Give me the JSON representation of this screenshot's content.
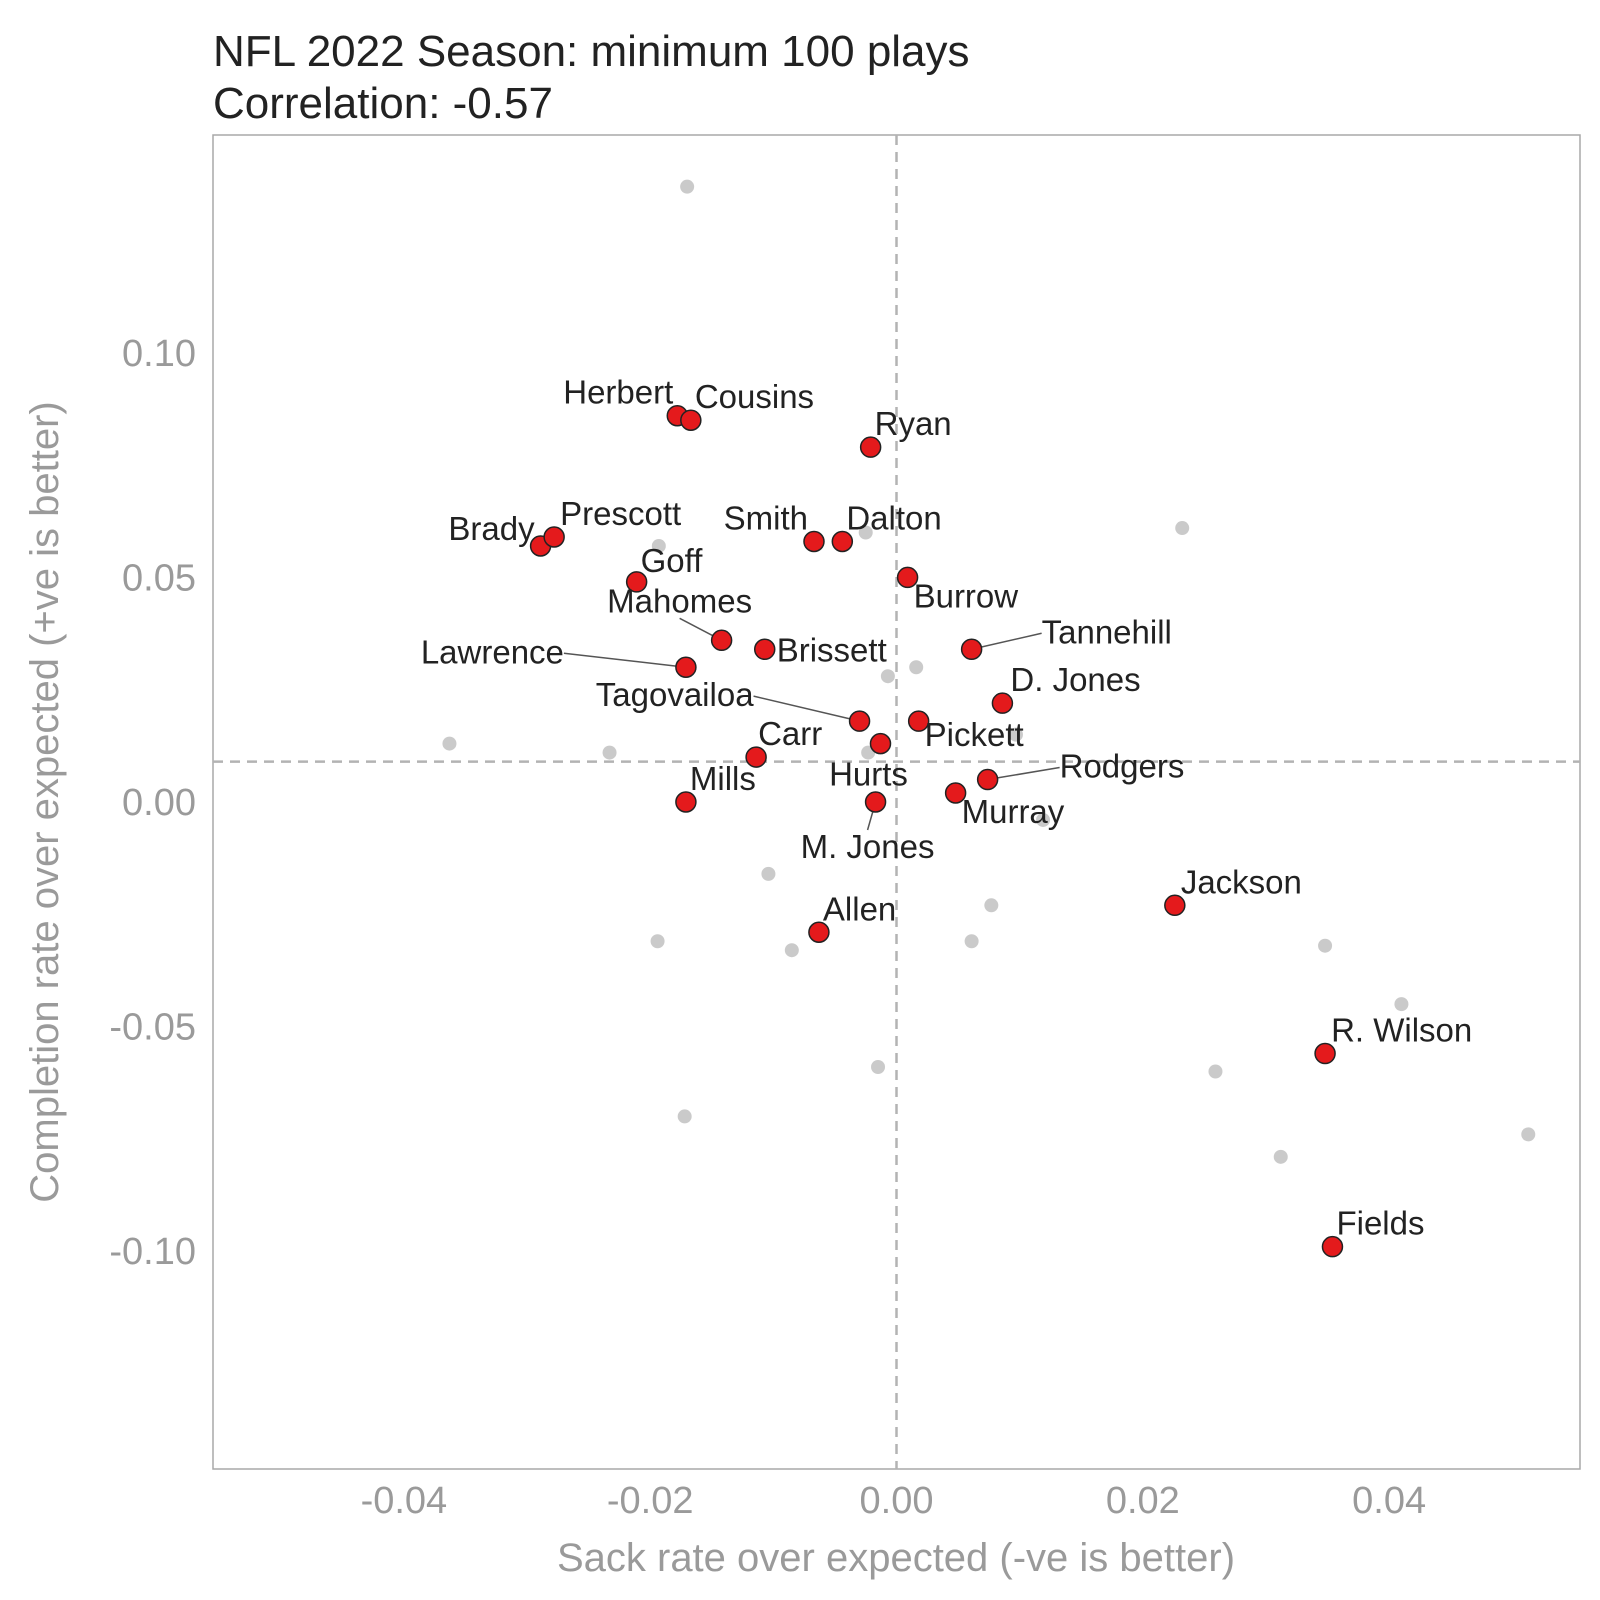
{
  "chart_data": {
    "type": "scatter",
    "title": "NFL 2022 Season: minimum 100 plays",
    "subtitle": "Correlation: -0.57",
    "xlabel": "Sack rate over expected (-ve is better)",
    "ylabel": "Completion rate over expected (+ve is better)",
    "xlim": [
      -0.0555,
      0.0555
    ],
    "ylim": [
      -0.1485,
      0.1485
    ],
    "x_ticks": [
      -0.04,
      -0.02,
      0.0,
      0.02,
      0.04
    ],
    "x_tick_labels": [
      "-0.04",
      "-0.02",
      "0.00",
      "0.02",
      "0.04"
    ],
    "y_ticks": [
      0.1,
      0.05,
      0.0,
      -0.05,
      -0.1
    ],
    "y_tick_labels": [
      "0.10",
      "0.05",
      "0.00",
      "-0.05",
      "-0.10"
    ],
    "grid": false,
    "reference_lines": {
      "x": 0.0,
      "y": 0.009,
      "style": "dashed",
      "color": "#b3b3b3"
    },
    "colors": {
      "highlight": "#e41a1c",
      "highlight_stroke": "#222222",
      "background_points": "#c4c4c4"
    },
    "highlighted": [
      {
        "name": "Herbert",
        "x": -0.0178,
        "y": 0.086
      },
      {
        "name": "Cousins",
        "x": -0.0167,
        "y": 0.085
      },
      {
        "name": "Ryan",
        "x": -0.0021,
        "y": 0.079
      },
      {
        "name": "Brady",
        "x": -0.0289,
        "y": 0.057
      },
      {
        "name": "Prescott",
        "x": -0.0278,
        "y": 0.059
      },
      {
        "name": "Smith",
        "x": -0.0067,
        "y": 0.058
      },
      {
        "name": "Dalton",
        "x": -0.0044,
        "y": 0.058
      },
      {
        "name": "Goff",
        "x": -0.0211,
        "y": 0.049
      },
      {
        "name": "Burrow",
        "x": 0.0009,
        "y": 0.05
      },
      {
        "name": "Mahomes",
        "x": -0.0142,
        "y": 0.036
      },
      {
        "name": "Brissett",
        "x": -0.0107,
        "y": 0.034
      },
      {
        "name": "Tannehill",
        "x": 0.0061,
        "y": 0.034
      },
      {
        "name": "Lawrence",
        "x": -0.0171,
        "y": 0.03
      },
      {
        "name": "D. Jones",
        "x": 0.0086,
        "y": 0.022
      },
      {
        "name": "Tagovailoa",
        "x": -0.003,
        "y": 0.018
      },
      {
        "name": "Pickett",
        "x": 0.0018,
        "y": 0.018
      },
      {
        "name": "Carr",
        "x": -0.0114,
        "y": 0.01
      },
      {
        "name": "Hurts",
        "x": -0.0013,
        "y": 0.013
      },
      {
        "name": "Rodgers",
        "x": 0.0074,
        "y": 0.005
      },
      {
        "name": "Mills",
        "x": -0.0171,
        "y": 0.0
      },
      {
        "name": "Murray",
        "x": 0.0048,
        "y": 0.002
      },
      {
        "name": "M. Jones",
        "x": -0.0017,
        "y": 0.0
      },
      {
        "name": "Jackson",
        "x": 0.0226,
        "y": -0.023
      },
      {
        "name": "Allen",
        "x": -0.0063,
        "y": -0.029
      },
      {
        "name": "R. Wilson",
        "x": 0.0348,
        "y": -0.056
      },
      {
        "name": "Fields",
        "x": 0.0354,
        "y": -0.099
      }
    ],
    "others": [
      {
        "x": -0.017,
        "y": 0.137
      },
      {
        "x": 0.0232,
        "y": 0.061
      },
      {
        "x": -0.0193,
        "y": 0.057
      },
      {
        "x": -0.0025,
        "y": 0.06
      },
      {
        "x": -0.0007,
        "y": 0.028
      },
      {
        "x": 0.0016,
        "y": 0.03
      },
      {
        "x": -0.0363,
        "y": 0.013
      },
      {
        "x": -0.0233,
        "y": 0.011
      },
      {
        "x": -0.0023,
        "y": 0.011
      },
      {
        "x": 0.0097,
        "y": 0.015
      },
      {
        "x": 0.0119,
        "y": -0.004
      },
      {
        "x": -0.0104,
        "y": -0.016
      },
      {
        "x": 0.0077,
        "y": -0.023
      },
      {
        "x": -0.0194,
        "y": -0.031
      },
      {
        "x": -0.0085,
        "y": -0.033
      },
      {
        "x": 0.0061,
        "y": -0.031
      },
      {
        "x": 0.0348,
        "y": -0.032
      },
      {
        "x": 0.041,
        "y": -0.045
      },
      {
        "x": 0.0259,
        "y": -0.06
      },
      {
        "x": -0.0015,
        "y": -0.059
      },
      {
        "x": -0.0172,
        "y": -0.07
      },
      {
        "x": 0.0312,
        "y": -0.079
      },
      {
        "x": 0.0513,
        "y": -0.074
      }
    ]
  }
}
